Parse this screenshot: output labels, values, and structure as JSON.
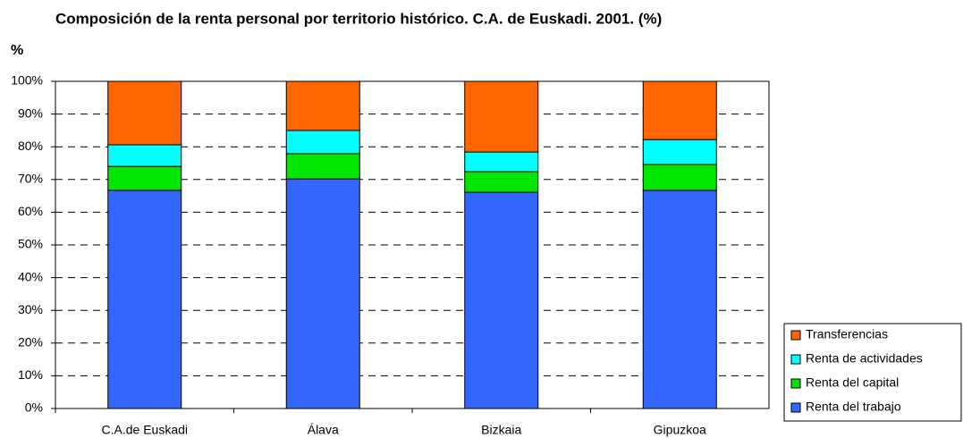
{
  "chart_data": {
    "type": "stacked_bar",
    "title": "Composición de la renta personal por territorio histórico. C.A. de Euskadi. 2001. (%)",
    "y_label": "%",
    "categories": [
      "C.A.de Euskadi",
      "Álava",
      "Bizkaia",
      "Gipuzkoa"
    ],
    "series": [
      {
        "name": "Renta del trabajo",
        "color": "#3366ff",
        "values": [
          66.7,
          70.2,
          66.1,
          66.7
        ]
      },
      {
        "name": "Renta  del capital",
        "color": "#00e600",
        "values": [
          7.3,
          7.7,
          6.3,
          7.9
        ]
      },
      {
        "name": "Renta de actividades",
        "color": "#00ffff",
        "values": [
          6.6,
          7.1,
          6.0,
          7.6
        ]
      },
      {
        "name": "Transferencias",
        "color": "#ff6600",
        "values": [
          19.4,
          15.0,
          21.6,
          17.8
        ]
      }
    ],
    "ylim": [
      0,
      100
    ],
    "yticks": [
      {
        "value": 0,
        "label": "0%"
      },
      {
        "value": 10,
        "label": "10%"
      },
      {
        "value": 20,
        "label": "20%"
      },
      {
        "value": 30,
        "label": "30%"
      },
      {
        "value": 40,
        "label": "40%"
      },
      {
        "value": 50,
        "label": "50%"
      },
      {
        "value": 60,
        "label": "60%"
      },
      {
        "value": 70,
        "label": "70%"
      },
      {
        "value": 80,
        "label": "80%"
      },
      {
        "value": 90,
        "label": "90%"
      },
      {
        "value": 100,
        "label": "100%"
      }
    ],
    "grid": true,
    "legend": "bottom-right"
  }
}
